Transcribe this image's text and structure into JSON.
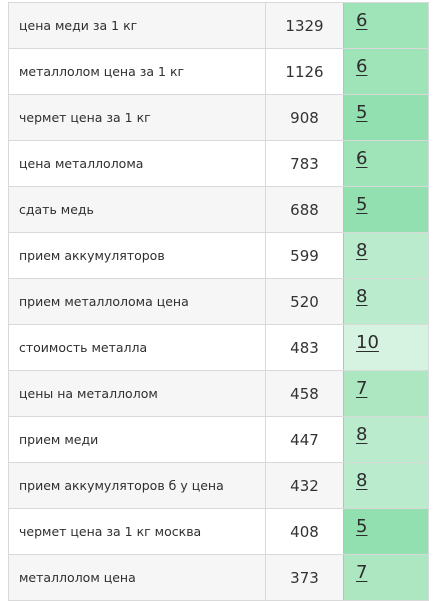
{
  "rows": [
    {
      "keyword": "цена меди за 1 кг",
      "volume": "1329",
      "position": "6",
      "color": "#9fe3b9"
    },
    {
      "keyword": "металлолом цена за 1 кг",
      "volume": "1126",
      "position": "6",
      "color": "#9fe3b9"
    },
    {
      "keyword": "чермет цена за 1 кг",
      "volume": "908",
      "position": "5",
      "color": "#92dfaf"
    },
    {
      "keyword": "цена металлолома",
      "volume": "783",
      "position": "6",
      "color": "#9fe3b9"
    },
    {
      "keyword": "сдать медь",
      "volume": "688",
      "position": "5",
      "color": "#92dfaf"
    },
    {
      "keyword": "прием аккумуляторов",
      "volume": "599",
      "position": "8",
      "color": "#b9ebcc"
    },
    {
      "keyword": "прием металлолома цена",
      "volume": "520",
      "position": "8",
      "color": "#b9ebcc"
    },
    {
      "keyword": "стоимость металла",
      "volume": "483",
      "position": "10",
      "color": "#d6f3e1"
    },
    {
      "keyword": "цены на металлолом",
      "volume": "458",
      "position": "7",
      "color": "#acE7c2"
    },
    {
      "keyword": "прием меди",
      "volume": "447",
      "position": "8",
      "color": "#b9ebcc"
    },
    {
      "keyword": "прием аккумуляторов б у цена",
      "volume": "432",
      "position": "8",
      "color": "#b9ebcc"
    },
    {
      "keyword": "чермет цена за 1 кг москва",
      "volume": "408",
      "position": "5",
      "color": "#92dfaf"
    },
    {
      "keyword": "металлолом цена",
      "volume": "373",
      "position": "7",
      "color": "#acE7c2"
    }
  ]
}
